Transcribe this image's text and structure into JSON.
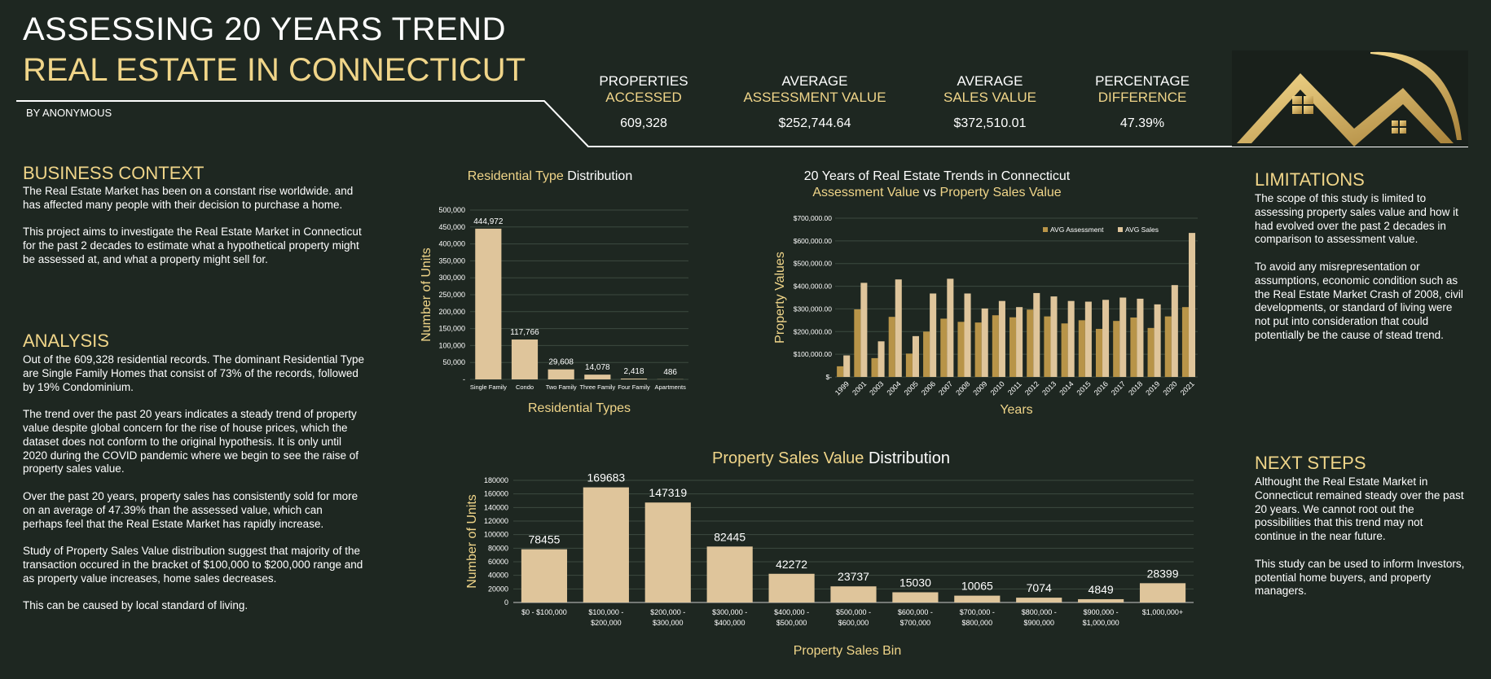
{
  "header": {
    "title_line1": "ASSESSING 20 YEARS TREND",
    "title_line2": "REAL ESTATE IN CONNECTICUT",
    "byline": "BY ANONYMOUS"
  },
  "kpis": [
    {
      "label1": "PROPERTIES",
      "label2": "ACCESSED",
      "value": "609,328"
    },
    {
      "label1": "AVERAGE",
      "label2": "ASSESSMENT VALUE",
      "value": "$252,744.64"
    },
    {
      "label1": "AVERAGE",
      "label2": "SALES VALUE",
      "value": "$372,510.01"
    },
    {
      "label1": "PERCENTAGE",
      "label2": "DIFFERENCE",
      "value": "47.39%"
    }
  ],
  "business_context": {
    "heading": "BUSINESS CONTEXT",
    "text": "The Real Estate Market has been on a constant rise worldwide. and has affected many people with their decision to purchase a home.\n\nThis project aims to investigate the Real Estate Market in Connecticut for the past 2 decades to estimate what a hypothetical property might be assessed at, and what a property might sell for."
  },
  "analysis": {
    "heading": "ANALYSIS",
    "text": "Out of the 609,328 residential records. The dominant Residential Type are Single Family Homes that consist of 73% of the records, followed by 19% Condominium.\n\nThe trend over the past 20 years indicates a steady trend of property value despite global concern for the rise of house prices, which the dataset does not conform to the original hypothesis.  It is only until 2020 during the COVID pandemic where we begin to see the raise of property sales value.\n\nOver the past 20 years, property sales has consistently sold for more on an average of 47.39% than the assessed value, which can perhaps feel that the Real Estate Market has rapidly increase.\n\nStudy of Property Sales Value distribution suggest that majority of the transaction occured in the bracket of $100,000 to $200,000 range and as property value increases, home sales decreases.\n\nThis can be caused by local standard of living."
  },
  "limitations": {
    "heading": "LIMITATIONS",
    "text": "The scope of this study is limited to assessing property sales value and how it had evolved over the past 2 decades in comparison to assessment value.\n\nTo avoid any misrepresentation or assumptions, economic condition such as the Real Estate Market Crash of 2008, civil developments, or standard of living were not put into consideration that could potentially be the cause of stead trend."
  },
  "next_steps": {
    "heading": "NEXT STEPS",
    "text": "Althought the Real Estate Market in Connecticut remained steady over the past 20 years.  We cannot root out the possibilities that this trend may not continue in the near future.\n\nThis study can be used to inform Investors, potential home buyers, and property managers."
  },
  "colors": {
    "background": "#1e2721",
    "gold": "#f0d589",
    "bar": "#dfc59b",
    "assessment": "#b89448",
    "sales": "#dfc59b"
  },
  "logo_icon": "house-roof-logo-icon",
  "chart_data": [
    {
      "type": "bar",
      "title_part1": "Residential Type",
      "title_part2": " Distribution",
      "xlabel": "Residential Types",
      "ylabel": "Number of Units",
      "ylim": [
        0,
        500000
      ],
      "yticks": [
        "-",
        "50,000",
        "100,000",
        "150,000",
        "200,000",
        "250,000",
        "300,000",
        "350,000",
        "400,000",
        "450,000",
        "500,000"
      ],
      "categories": [
        "Single Family",
        "Condo",
        "Two Family",
        "Three Family",
        "Four Family",
        "Apartments"
      ],
      "values": [
        444972,
        117766,
        29608,
        14078,
        2418,
        486
      ],
      "data_labels": [
        "444,972",
        "117,766",
        "29,608",
        "14,078",
        "2,418",
        "486"
      ],
      "grid": true
    },
    {
      "type": "bar",
      "title_line1": "20 Years of Real Estate Trends in Connecticut",
      "title_part1": "Assessment Value",
      "title_part2": " vs ",
      "title_part3": "Property Sales Value",
      "xlabel": "Years",
      "ylabel": "Property Values",
      "ylim": [
        0,
        700000
      ],
      "yticks": [
        "$-",
        "$100,000.00",
        "$200,000.00",
        "$300,000.00",
        "$400,000.00",
        "$500,000.00",
        "$600,000.00",
        "$700,000.00"
      ],
      "categories": [
        "1999",
        "2001",
        "2003",
        "2004",
        "2005",
        "2006",
        "2007",
        "2008",
        "2009",
        "2010",
        "2011",
        "2012",
        "2013",
        "2014",
        "2015",
        "2016",
        "2017",
        "2018",
        "2019",
        "2020",
        "2021"
      ],
      "series": [
        {
          "name": "AVG Assessment",
          "values": [
            47000,
            298000,
            83000,
            265000,
            103000,
            200000,
            257000,
            243000,
            240000,
            272000,
            263000,
            297000,
            267000,
            236000,
            250000,
            212000,
            247000,
            262000,
            216000,
            267000,
            308000
          ]
        },
        {
          "name": "AVG Sales",
          "values": [
            95000,
            415000,
            157000,
            430000,
            180000,
            368000,
            433000,
            368000,
            302000,
            335000,
            308000,
            370000,
            355000,
            335000,
            332000,
            340000,
            350000,
            345000,
            320000,
            405000,
            635000
          ]
        }
      ],
      "legend": "top-right",
      "grid": true
    },
    {
      "type": "bar",
      "title_part1": "Property Sales Value",
      "title_part2": " Distribution",
      "xlabel": "Property Sales Bin",
      "ylabel": "Number of Units",
      "ylim": [
        0,
        180000
      ],
      "yticks": [
        "0",
        "20000",
        "40000",
        "60000",
        "80000",
        "100000",
        "120000",
        "140000",
        "160000",
        "180000"
      ],
      "categories": [
        [
          "$0 - $100,000"
        ],
        [
          "$100,000 -",
          "$200,000"
        ],
        [
          "$200,000 -",
          "$300,000"
        ],
        [
          "$300,000 -",
          "$400,000"
        ],
        [
          "$400,000 -",
          "$500,000"
        ],
        [
          "$500,000 -",
          "$600,000"
        ],
        [
          "$600,000 -",
          "$700,000"
        ],
        [
          "$700,000 -",
          "$800,000"
        ],
        [
          "$800,000 -",
          "$900,000"
        ],
        [
          "$900,000 -",
          "$1,000,000"
        ],
        [
          "$1,000,000+"
        ]
      ],
      "values": [
        78455,
        169683,
        147319,
        82445,
        42272,
        23737,
        15030,
        10065,
        7074,
        4849,
        28399
      ],
      "grid": true
    }
  ]
}
